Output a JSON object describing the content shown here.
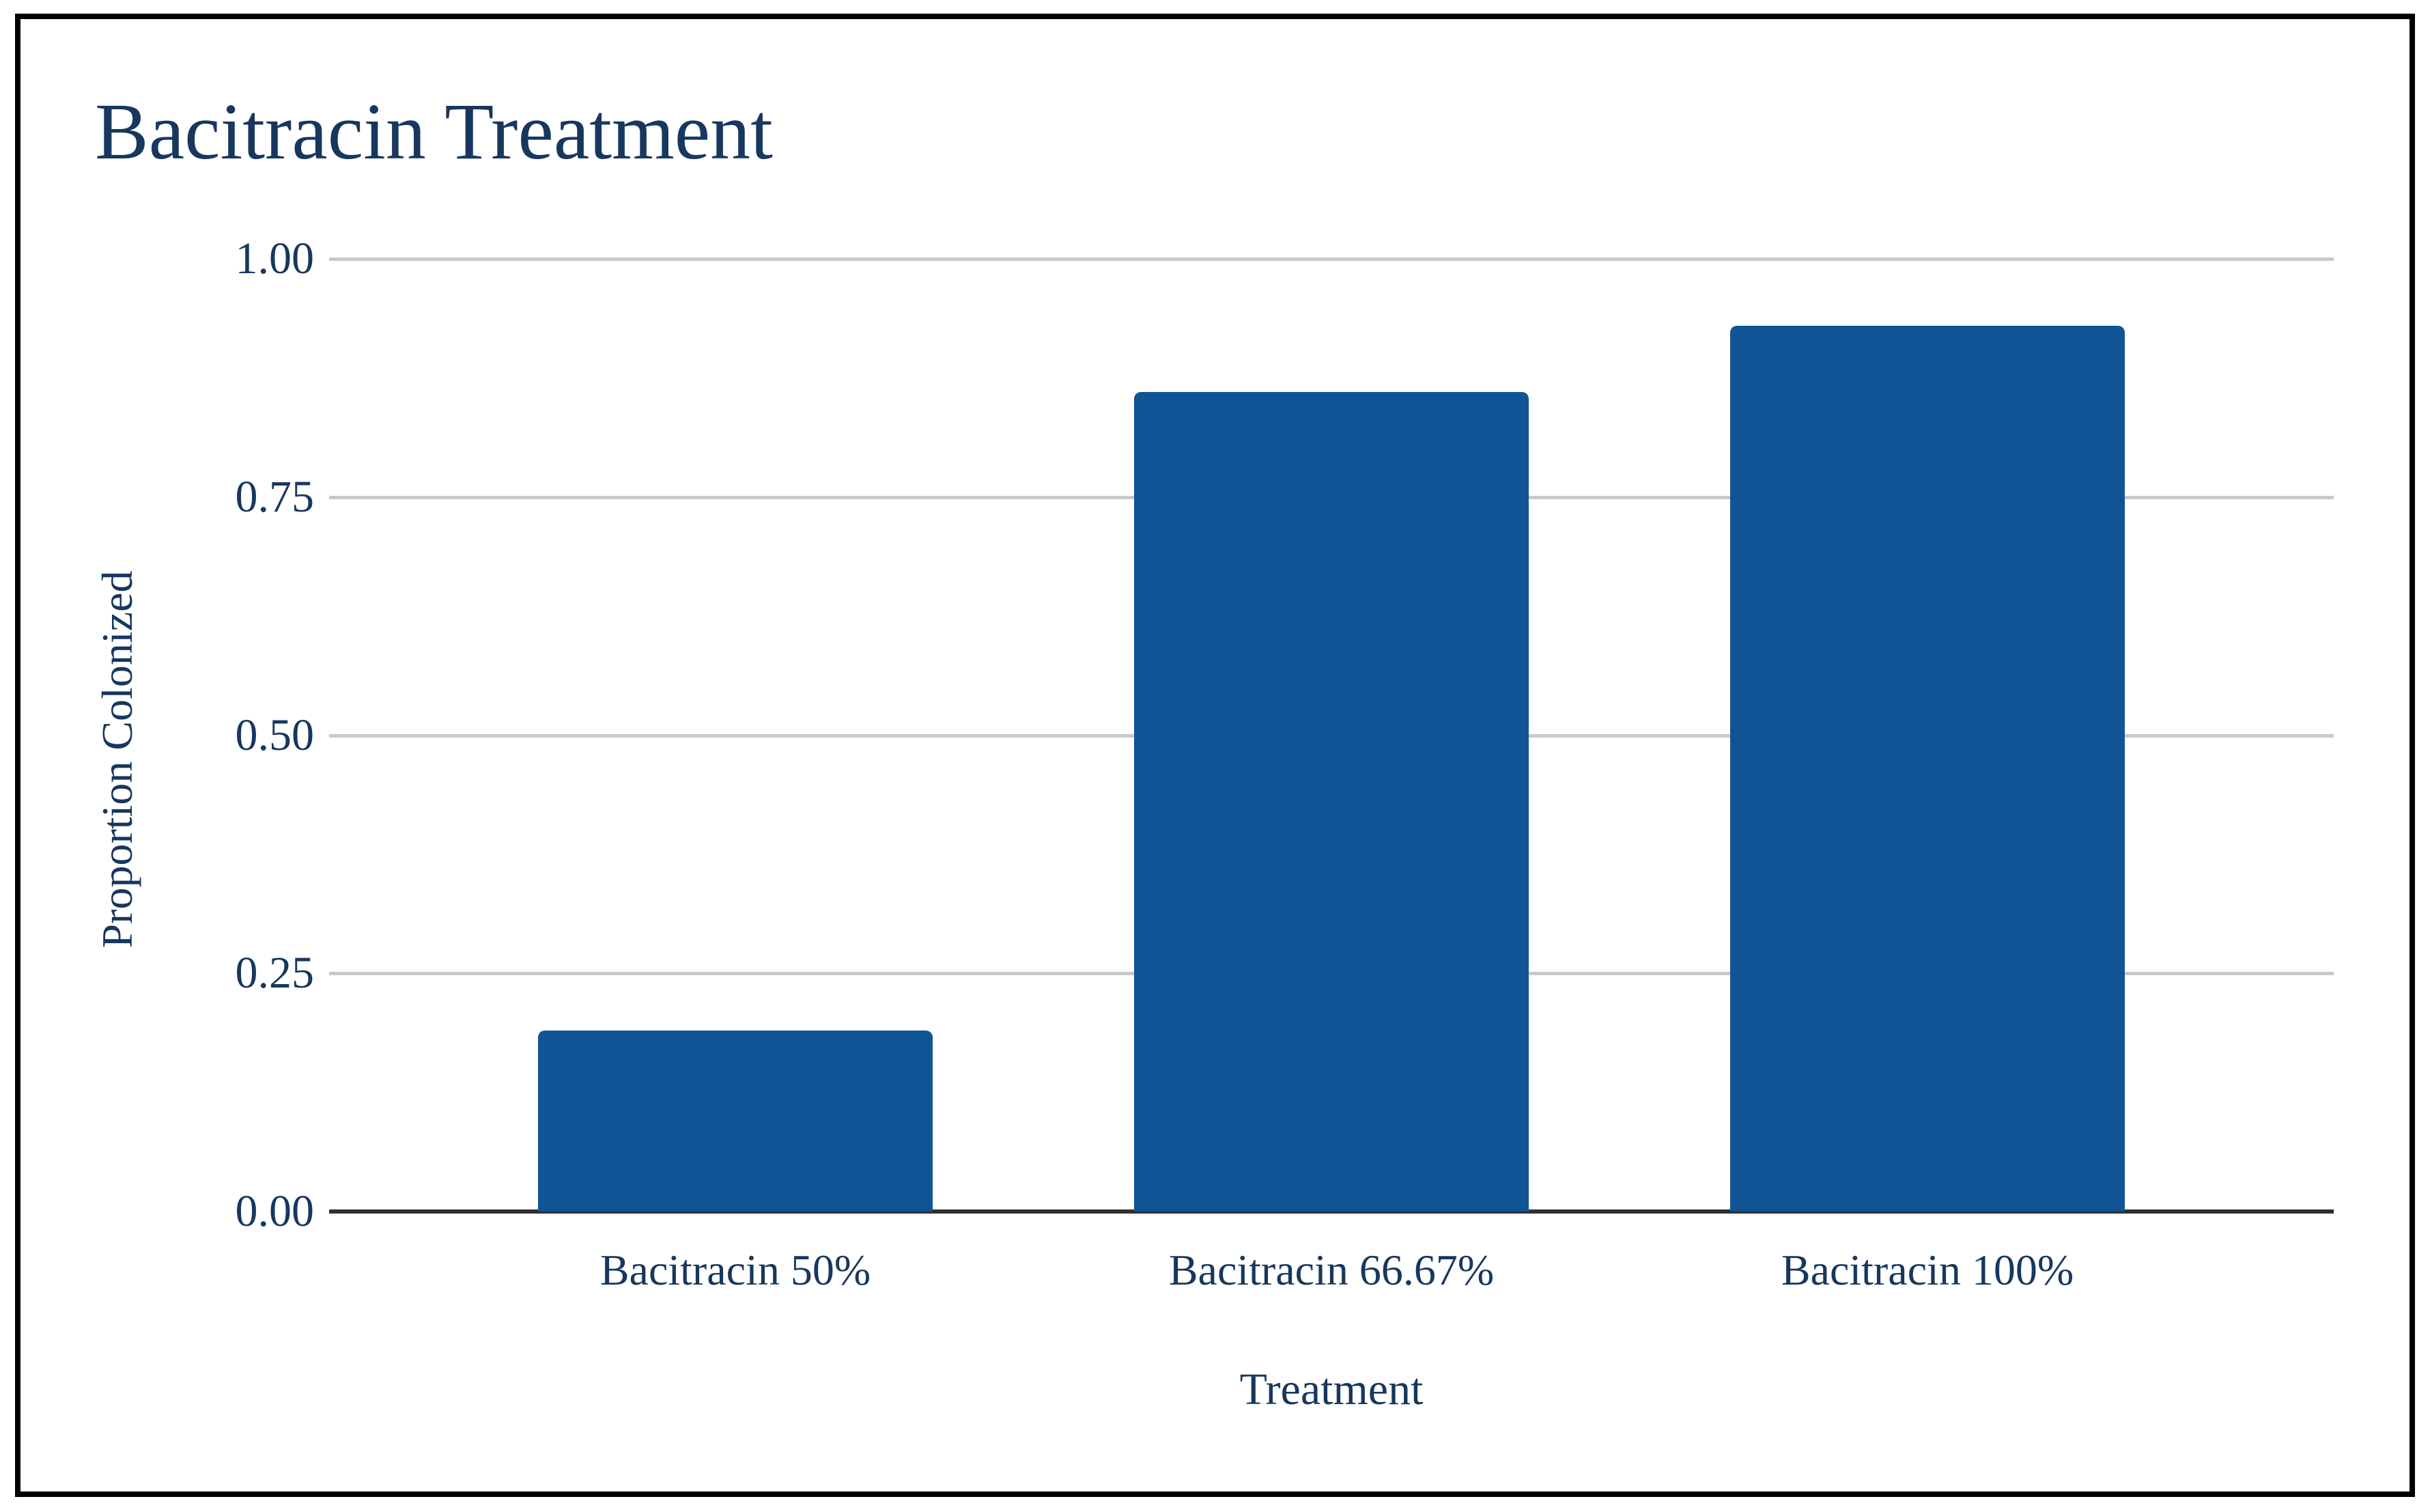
{
  "chart_data": {
    "type": "bar",
    "title": "Bacitracin Treatment",
    "xlabel": "Treatment",
    "ylabel": "Proportion Colonized",
    "categories": [
      "Bacitracin 50%",
      "Bacitracin 66.67%",
      "Bacitracin 100%"
    ],
    "values": [
      0.19,
      0.86,
      0.93
    ],
    "ylim": [
      0,
      1
    ],
    "yticks": [
      0,
      0.25,
      0.5,
      0.75,
      1
    ],
    "ytick_labels": [
      "0.00",
      "0.25",
      "0.50",
      "0.75",
      "1.00"
    ],
    "grid": "horizontal-only",
    "legend": "none",
    "bar_color": "#105496",
    "colors": {
      "text": "#17375E",
      "gridline": "#C9C9C9",
      "axis_line": "#2F2F2F",
      "frame": "#000000",
      "background": "#FFFFFF"
    }
  }
}
